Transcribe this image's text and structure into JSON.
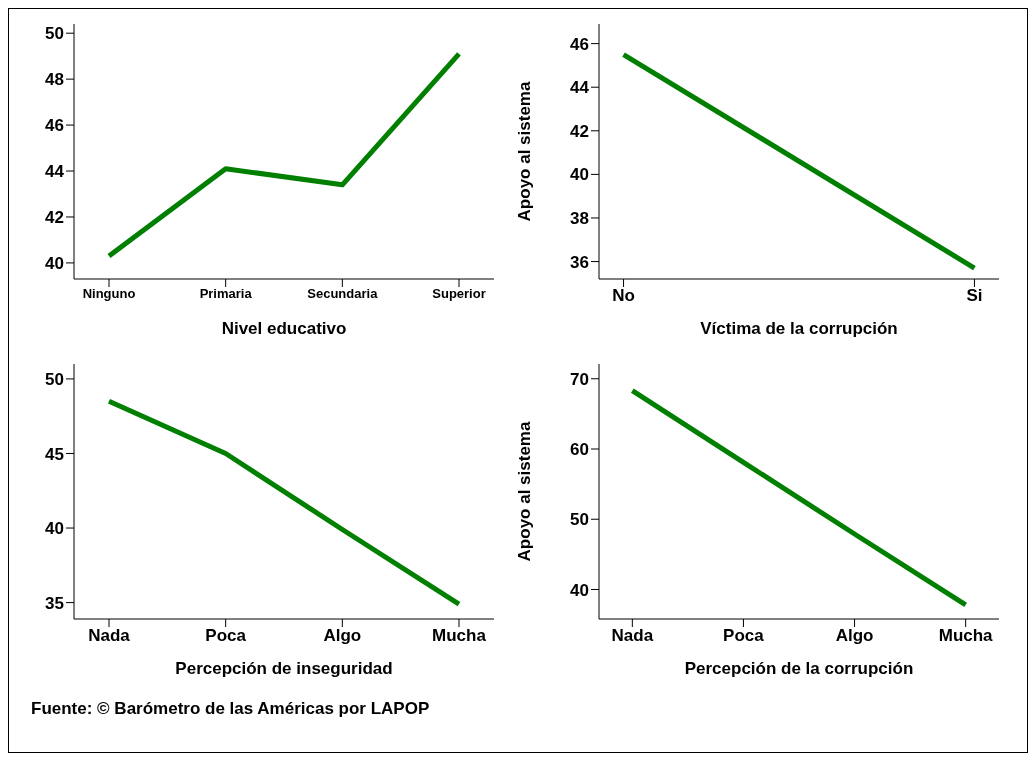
{
  "chart_data": [
    {
      "type": "line",
      "xlabel": "Nivel educativo",
      "categories": [
        "Ninguno",
        "Primaria",
        "Secundaria",
        "Superior"
      ],
      "series": [
        {
          "color": "#007f00",
          "values": [
            40.3,
            44.1,
            43.4,
            49.1
          ]
        }
      ],
      "ylim": [
        39.3,
        50.4
      ],
      "yticks": [
        40,
        42,
        44,
        46,
        48,
        50
      ],
      "grid": false,
      "legend": false,
      "marker": "none"
    },
    {
      "type": "line",
      "xlabel": "Víctima de la corrupción",
      "ylabel": "Apoyo al sistema",
      "categories": [
        "No",
        "Si"
      ],
      "series": [
        {
          "color": "#007f00",
          "values": [
            45.5,
            35.7
          ]
        }
      ],
      "ylim": [
        35.2,
        46.9
      ],
      "yticks": [
        36,
        38,
        40,
        42,
        44,
        46
      ],
      "grid": false,
      "legend": false,
      "marker": "none"
    },
    {
      "type": "line",
      "xlabel": "Percepción de inseguridad",
      "categories": [
        "Nada",
        "Poca",
        "Algo",
        "Mucha"
      ],
      "series": [
        {
          "color": "#007f00",
          "values": [
            48.5,
            45.0,
            39.9,
            34.9
          ]
        }
      ],
      "ylim": [
        33.9,
        51
      ],
      "yticks": [
        35,
        40,
        45,
        50
      ],
      "grid": false,
      "legend": false,
      "marker": "none"
    },
    {
      "type": "line",
      "xlabel": "Percepción de la corrupción",
      "ylabel": "Apoyo al sistema",
      "categories": [
        "Nada",
        "Poca",
        "Algo",
        "Mucha"
      ],
      "series": [
        {
          "color": "#007f00",
          "values": [
            68.3,
            58.1,
            47.9,
            37.8
          ]
        }
      ],
      "ylim": [
        35.8,
        72.1
      ],
      "yticks": [
        40,
        50,
        60,
        70
      ],
      "grid": false,
      "legend": false,
      "marker": "none",
      "annotations": [
        "Fuente: © Barómetro de las Américas por LAPOP"
      ]
    }
  ]
}
